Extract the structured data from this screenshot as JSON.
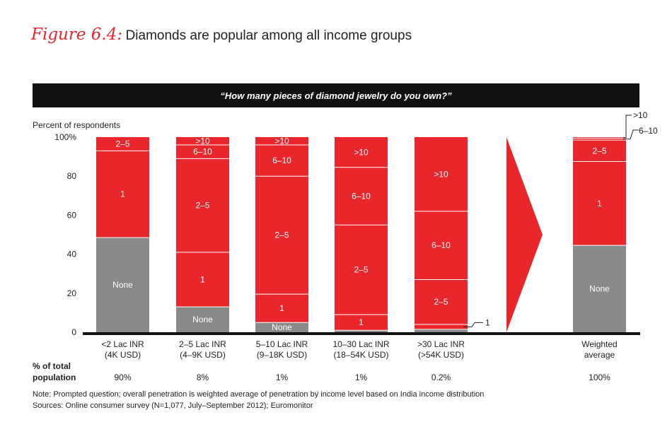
{
  "figure": {
    "number": "Figure 6.4:",
    "title": "Diamonds are popular among all income groups",
    "question": "“How many pieces of diamond jewelry do you own?”"
  },
  "chart_data": {
    "type": "bar",
    "stacked": true,
    "ylabel": "Percent of respondents",
    "ylim": [
      0,
      100
    ],
    "yticks": [
      "0",
      "20",
      "40",
      "60",
      "80",
      "100%"
    ],
    "categories": [
      {
        "line1": "<2 Lac INR",
        "line2": "(4K USD)"
      },
      {
        "line1": "2–5 Lac INR",
        "line2": "(4–9K USD)"
      },
      {
        "line1": "5–10 Lac INR",
        "line2": "(9–18K USD)"
      },
      {
        "line1": "10–30 Lac INR",
        "line2": "(18–54K USD)"
      },
      {
        "line1": ">30 Lac INR",
        "line2": "(>54K USD)"
      },
      {
        "line1": "Weighted",
        "line2": "average"
      }
    ],
    "segments": [
      "None",
      "1",
      "2–5",
      "6–10",
      ">10"
    ],
    "values": [
      [
        48.5,
        44.5,
        7,
        0,
        0
      ],
      [
        13,
        28,
        48,
        7,
        4
      ],
      [
        5,
        14.5,
        60.5,
        16,
        4
      ],
      [
        1,
        8,
        46,
        29.5,
        15.5
      ],
      [
        1.5,
        2.5,
        23,
        35,
        38
      ],
      [
        44.5,
        43,
        11,
        1,
        0.5
      ]
    ],
    "bar_labels": [
      [
        "None",
        "1",
        "2–5",
        null,
        null
      ],
      [
        "None",
        "1",
        "2–5",
        "6–10",
        ">10"
      ],
      [
        "None",
        "1",
        "2–5",
        "6–10",
        ">10"
      ],
      [
        null,
        "1",
        "2–5",
        "6–10",
        ">10"
      ],
      [
        null,
        null,
        "2–5",
        "6–10",
        ">10"
      ],
      [
        "None",
        "1",
        "2–5",
        null,
        null
      ]
    ],
    "callouts": [
      {
        "bar": 4,
        "label": "1"
      },
      {
        "bar": 5,
        "label": ">10"
      },
      {
        "bar": 5,
        "label": "6–10"
      }
    ],
    "population_label": [
      "% of total",
      "population"
    ],
    "population_share": [
      "90%",
      "8%",
      "1%",
      "1%",
      "0.2%",
      "100%"
    ],
    "colors": {
      "None": "#898989",
      "bar": "#e8262b",
      "arrow": "#e8262b",
      "divider": "#ffffff",
      "axis": "#111111"
    }
  },
  "notes": {
    "note": "Note: Prompted question; overall penetration is weighted average of penetration by income level based on India income distribution",
    "sources": "Sources: Online consumer survey (N=1,077, July–September 2012); Euromonitor"
  }
}
